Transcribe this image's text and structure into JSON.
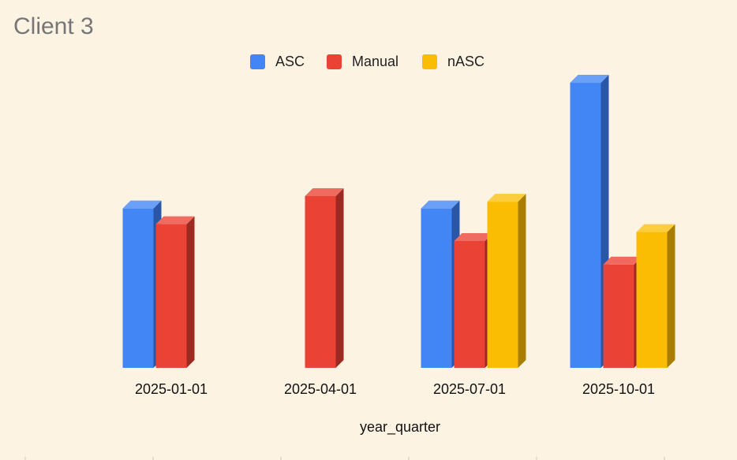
{
  "chart_data": {
    "type": "bar",
    "title": "Client 3",
    "xlabel": "year_quarter",
    "ylabel": "",
    "categories": [
      "2025-01-01",
      "2025-04-01",
      "2025-07-01",
      "2025-10-01"
    ],
    "series": [
      {
        "name": "ASC",
        "color": "#4285f4",
        "side": "#2a56a8",
        "top": "#6aa0f7",
        "values": [
          142,
          null,
          142,
          254
        ]
      },
      {
        "name": "Manual",
        "color": "#ea4335",
        "side": "#9c2a22",
        "top": "#ef6b60",
        "values": [
          128,
          153,
          113,
          92
        ]
      },
      {
        "name": "nASC",
        "color": "#fbbc04",
        "side": "#a97e00",
        "top": "#fccd3f",
        "values": [
          null,
          null,
          148,
          121
        ]
      }
    ],
    "ylim": [
      0,
      280
    ],
    "grid": false,
    "legend": "top-center",
    "three_d": true
  }
}
